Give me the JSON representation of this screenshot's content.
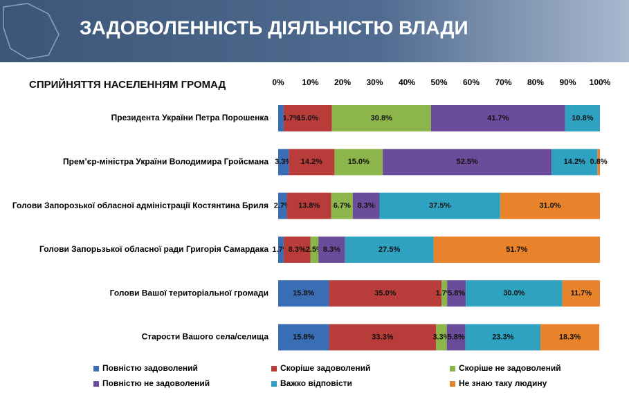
{
  "chart_data": {
    "type": "stacked-bar-horizontal",
    "title": "ЗАДОВОЛЕННІСТЬ ДІЯЛЬНІСТЮ ВЛАДИ",
    "subtitle": "СПРИЙНЯТТЯ НАСЕЛЕННЯМ ГРОМАД",
    "categories": [
      "Президента України Петра Порошенка",
      "Прем’єр-міністра України Володимира Гройсмана",
      "Голови Запорозької обласної адміністрації Костянтина Бриля",
      "Голови Запорьзької обласної ради Григорія Самардака",
      "Голови Вашої територіальної громади",
      "Старости Вашого села/селища"
    ],
    "xlim": [
      0,
      100
    ],
    "xticks": [
      {
        "value": 0,
        "label": "0%"
      },
      {
        "value": 10,
        "label": "10%"
      },
      {
        "value": 20,
        "label": "20%"
      },
      {
        "value": 30,
        "label": "30%"
      },
      {
        "value": 40,
        "label": "40%"
      },
      {
        "value": 50,
        "label": "50%"
      },
      {
        "value": 60,
        "label": "60%"
      },
      {
        "value": 70,
        "label": "70%"
      },
      {
        "value": 80,
        "label": "80%"
      },
      {
        "value": 90,
        "label": "90%"
      },
      {
        "value": 100,
        "label": "100%"
      }
    ],
    "series": [
      {
        "name": "Повністю задоволений",
        "color": "#3a6eb4",
        "values": [
          1.7,
          3.3,
          2.7,
          1.7,
          15.8,
          15.8
        ],
        "value_labels": [
          null,
          "3.3%",
          "2.7%",
          "1.7%",
          "15.8%",
          "15.8%"
        ]
      },
      {
        "name": "Скоріше задоволений",
        "color": "#b83c3a",
        "values": [
          15.0,
          14.2,
          13.8,
          8.3,
          35.0,
          33.3
        ],
        "value_labels": [
          "15.0%",
          "14.2%",
          "13.8%",
          "8.3%",
          "35.0%",
          "33.3%"
        ]
      },
      {
        "name": "Скоріше не задоволений",
        "color": "#8cb54b",
        "values": [
          30.8,
          15.0,
          6.7,
          2.5,
          1.7,
          3.3
        ],
        "value_labels": [
          "30.8%",
          "15.0%",
          "6.7%",
          "2.5%",
          "1.7%",
          "3.3%"
        ]
      },
      {
        "name": "Повністю не задоволений",
        "color": "#6b4c9a",
        "values": [
          41.7,
          52.5,
          8.3,
          8.3,
          5.8,
          5.8
        ],
        "value_labels": [
          "41.7%",
          "52.5%",
          "8.3%",
          "8.3%",
          "5.8%",
          "5.8%"
        ]
      },
      {
        "name": "Важко відповісти",
        "color": "#2fa2c1",
        "values": [
          10.8,
          14.2,
          37.5,
          27.5,
          30.0,
          23.3
        ],
        "value_labels": [
          "10.8%",
          "14.2%",
          "37.5%",
          "27.5%",
          "30.0%",
          "23.3%"
        ]
      },
      {
        "name": "Не знаю таку людину",
        "color": "#e8832b",
        "values": [
          null,
          0.8,
          31.0,
          51.7,
          11.7,
          18.3
        ],
        "value_labels": [
          null,
          "0.8%",
          "31.0%",
          "51.7%",
          "11.7%",
          "18.3%"
        ]
      }
    ],
    "first_label": "1.7%"
  }
}
